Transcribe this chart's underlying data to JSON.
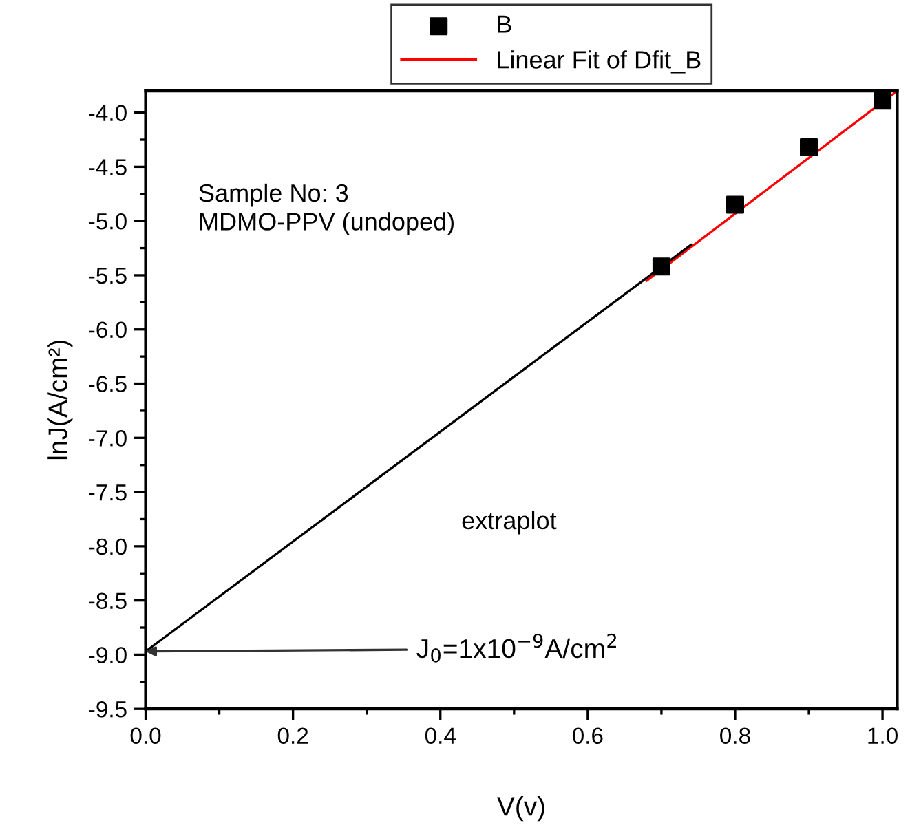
{
  "chart_data": {
    "type": "scatter",
    "xlabel": "V(v)",
    "ylabel": "lnJ(A/cm²)",
    "series": [
      {
        "name": "B",
        "color": "#000000",
        "marker": "square",
        "x": [
          0.7,
          0.8,
          0.9,
          1.0
        ],
        "values": [
          -5.42,
          -4.85,
          -4.32,
          -3.89
        ]
      },
      {
        "name": "Linear Fit of Dfit_B",
        "type": "line",
        "color": "#ff0000",
        "marker": "none",
        "x": [
          0.68,
          1.02
        ],
        "values": [
          -5.55,
          -3.8
        ]
      },
      {
        "type": "line",
        "color": "#000000",
        "marker": "none",
        "x": [
          0.0,
          0.74
        ],
        "values": [
          -8.97,
          -5.22
        ]
      }
    ],
    "annotations": [
      "Sample No: 3\nMDMO-PPV (undoped)",
      "extraplot",
      {
        "text": "J$_{0}$=1x10$^{−9}$A/cm$^{2}$",
        "x": 0.0,
        "y": -8.97
      }
    ],
    "xlim": [
      0.0,
      1.02
    ],
    "xticks": [
      {
        "value": 0.0,
        "label": "0.0"
      },
      {
        "value": 0.2,
        "label": "0.2"
      },
      {
        "value": 0.4,
        "label": "0.4"
      },
      {
        "value": 0.6,
        "label": "0.6"
      },
      {
        "value": 0.8,
        "label": "0.8"
      },
      {
        "value": 1.0,
        "label": "1.0"
      }
    ],
    "ylim": [
      -9.5,
      -3.8
    ],
    "yticks": [
      {
        "value": -9.5,
        "label": "-9.5"
      },
      {
        "value": -9.0,
        "label": "-9.0"
      },
      {
        "value": -8.5,
        "label": "-8.5"
      },
      {
        "value": -8.0,
        "label": "-8.0"
      },
      {
        "value": -7.5,
        "label": "-7.5"
      },
      {
        "value": -7.0,
        "label": "-7.0"
      },
      {
        "value": -6.5,
        "label": "-6.5"
      },
      {
        "value": -6.0,
        "label": "-6.0"
      },
      {
        "value": -5.5,
        "label": "-5.5"
      },
      {
        "value": -5.0,
        "label": "-5.0"
      },
      {
        "value": -4.5,
        "label": "-4.5"
      },
      {
        "value": -4.0,
        "label": "-4.0"
      }
    ],
    "grid": false,
    "legend": "top"
  }
}
